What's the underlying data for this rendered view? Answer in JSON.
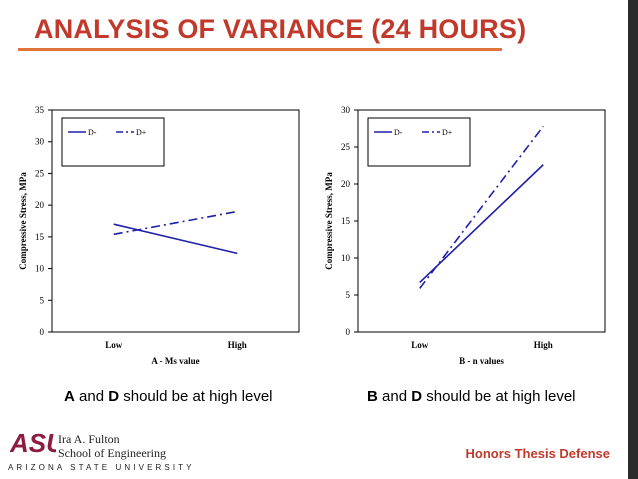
{
  "slide": {
    "title": "ANALYSIS OF VARIANCE (24 HOURS)",
    "footer": "Honors Thesis Defense",
    "logo": {
      "mark": "ASU",
      "line1": "Ira A. Fulton",
      "line2": "School of Engineering",
      "university": "ARIZONA STATE UNIVERSITY"
    },
    "captions": [
      {
        "bold1": "A",
        "mid": " and ",
        "bold2": "D",
        "rest": " should be at high level"
      },
      {
        "bold1": "B",
        "mid": " and ",
        "bold2": "D",
        "rest": " should be at high level"
      }
    ]
  },
  "colors": {
    "accent": "#c0392b",
    "rule": "#e0733a",
    "series": "#1f1fa8",
    "right_bar": "#2b2b2b",
    "logo": "#8c1d40"
  },
  "chart_data": [
    {
      "type": "line",
      "categories": [
        "Low",
        "High"
      ],
      "xlabel": "A - Ms value",
      "ylabel": "Compressive Stress, MPa",
      "ylim": [
        0,
        35
      ],
      "yticks": [
        0,
        5,
        10,
        15,
        20,
        25,
        30,
        35
      ],
      "legend": "top-left",
      "series": [
        {
          "name": "D-",
          "values": [
            17.0,
            12.4
          ],
          "dash": "solid"
        },
        {
          "name": "D+",
          "values": [
            15.4,
            19.0
          ],
          "dash": "dashdot"
        }
      ]
    },
    {
      "type": "line",
      "categories": [
        "Low",
        "High"
      ],
      "xlabel": "B - n values",
      "ylabel": "Compressive Stress, MPa",
      "ylim": [
        0,
        30
      ],
      "yticks": [
        0,
        5,
        10,
        15,
        20,
        25,
        30
      ],
      "legend": "top-left",
      "series": [
        {
          "name": "D-",
          "values": [
            6.7,
            22.6
          ],
          "dash": "solid"
        },
        {
          "name": "D+",
          "values": [
            5.9,
            27.8
          ],
          "dash": "dashdot"
        }
      ]
    }
  ]
}
